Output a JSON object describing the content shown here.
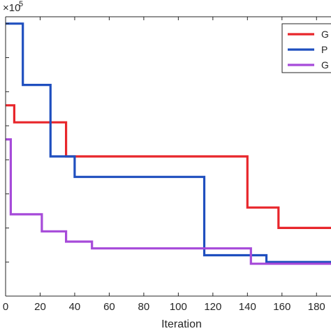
{
  "chart_data": {
    "type": "line",
    "title": "",
    "xlabel": "Iteration",
    "ylabel": "",
    "exponent_label": "×10",
    "exponent_power": "5",
    "xlim": [
      0,
      190
    ],
    "ylim": [
      0,
      8.2
    ],
    "xticks": [
      0,
      20,
      40,
      60,
      80,
      100,
      120,
      140,
      160,
      180
    ],
    "grid": false,
    "legend_position": "top-right",
    "series": [
      {
        "name": "G",
        "color": "#e8262b",
        "points": [
          [
            0,
            5.6
          ],
          [
            5,
            5.6
          ],
          [
            5,
            5.1
          ],
          [
            35,
            5.1
          ],
          [
            35,
            4.1
          ],
          [
            140,
            4.1
          ],
          [
            140,
            2.6
          ],
          [
            158,
            2.6
          ],
          [
            158,
            2.0
          ],
          [
            190,
            2.0
          ]
        ]
      },
      {
        "name": "P",
        "color": "#1f4fbf",
        "points": [
          [
            0,
            8.0
          ],
          [
            10,
            8.0
          ],
          [
            10,
            6.2
          ],
          [
            26,
            6.2
          ],
          [
            26,
            4.1
          ],
          [
            40,
            4.1
          ],
          [
            40,
            3.5
          ],
          [
            115,
            3.5
          ],
          [
            115,
            1.2
          ],
          [
            151,
            1.2
          ],
          [
            151,
            1.0
          ],
          [
            190,
            1.0
          ]
        ]
      },
      {
        "name": "G",
        "color": "#a64ad9",
        "points": [
          [
            0,
            4.6
          ],
          [
            3,
            4.6
          ],
          [
            3,
            2.4
          ],
          [
            21,
            2.4
          ],
          [
            21,
            1.9
          ],
          [
            35,
            1.9
          ],
          [
            35,
            1.6
          ],
          [
            50,
            1.6
          ],
          [
            50,
            1.4
          ],
          [
            142,
            1.4
          ],
          [
            142,
            0.95
          ],
          [
            190,
            0.95
          ]
        ]
      }
    ]
  }
}
